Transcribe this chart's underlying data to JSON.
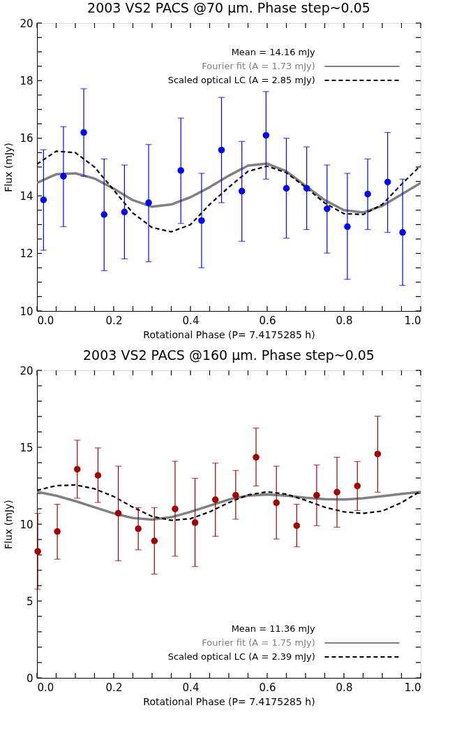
{
  "chart_data": [
    {
      "type": "scatter",
      "title": "2003 VS2 PACS @70 μm. Phase step~0.05",
      "xlabel": "Rotational Phase (P= 7.4175285 h)",
      "ylabel": "Flux (mJy)",
      "xlim": [
        0,
        1
      ],
      "ylim": [
        10,
        20
      ],
      "xticks": [
        {
          "value": 0,
          "label": "0.0"
        },
        {
          "value": 0.05,
          "label": null
        },
        {
          "value": 0.1,
          "label": null
        },
        {
          "value": 0.15,
          "label": null
        },
        {
          "value": 0.2,
          "label": "0.2"
        },
        {
          "value": 0.25,
          "label": null
        },
        {
          "value": 0.3,
          "label": null
        },
        {
          "value": 0.35,
          "label": null
        },
        {
          "value": 0.4,
          "label": "0.4"
        },
        {
          "value": 0.45,
          "label": null
        },
        {
          "value": 0.5,
          "label": null
        },
        {
          "value": 0.55,
          "label": null
        },
        {
          "value": 0.6,
          "label": "0.6"
        },
        {
          "value": 0.65,
          "label": null
        },
        {
          "value": 0.7,
          "label": null
        },
        {
          "value": 0.75,
          "label": null
        },
        {
          "value": 0.8,
          "label": "0.8"
        },
        {
          "value": 0.85,
          "label": null
        },
        {
          "value": 0.9,
          "label": null
        },
        {
          "value": 0.95,
          "label": null
        },
        {
          "value": 1,
          "label": "1.0"
        }
      ],
      "yticks": [
        10,
        {
          "value": 10.5,
          "label": null
        },
        {
          "value": 11,
          "label": null
        },
        {
          "value": 11.5,
          "label": null
        },
        12,
        {
          "value": 12.5,
          "label": null
        },
        {
          "value": 13,
          "label": null
        },
        {
          "value": 13.5,
          "label": null
        },
        14,
        {
          "value": 14.5,
          "label": null
        },
        {
          "value": 15,
          "label": null
        },
        {
          "value": 15.5,
          "label": null
        },
        16,
        {
          "value": 16.5,
          "label": null
        },
        {
          "value": 17,
          "label": null
        },
        {
          "value": 17.5,
          "label": null
        },
        18,
        {
          "value": 18.5,
          "label": null
        },
        {
          "value": 19,
          "label": null
        },
        {
          "value": 19.5,
          "label": null
        },
        20
      ],
      "grid": false,
      "legend": "top right",
      "annotations": [
        "Mean = 14.16 mJy"
      ],
      "series": [
        {
          "type": "scatter",
          "color": "#0000ff",
          "marker": "circle",
          "x": [
            0.017,
            0.069,
            0.122,
            0.175,
            0.228,
            0.291,
            0.375,
            0.429,
            0.481,
            0.534,
            0.597,
            0.65,
            0.703,
            0.756,
            0.809,
            0.862,
            0.914,
            0.953
          ],
          "values": [
            13.86,
            14.68,
            16.2,
            13.35,
            13.44,
            13.76,
            14.88,
            13.14,
            15.59,
            14.16,
            16.1,
            14.26,
            14.26,
            13.55,
            12.93,
            14.06,
            14.48,
            12.73
          ],
          "errors": [
            [
              12.11,
              15.6
            ],
            [
              12.93,
              16.4
            ],
            [
              14.68,
              17.72
            ],
            [
              11.4,
              15.28
            ],
            [
              11.81,
              15.07
            ],
            [
              11.71,
              15.78
            ],
            [
              13.04,
              16.7
            ],
            [
              11.5,
              14.78
            ],
            [
              13.76,
              17.42
            ],
            [
              12.42,
              15.89
            ],
            [
              14.58,
              17.62
            ],
            [
              12.53,
              16.0
            ],
            [
              12.83,
              15.7
            ],
            [
              12.01,
              15.07
            ],
            [
              11.1,
              14.78
            ],
            [
              12.83,
              15.28
            ],
            [
              12.73,
              16.2
            ],
            [
              10.89,
              14.58
            ]
          ]
        },
        {
          "type": "line",
          "name": "Fourier fit (A = 1.73 mJy)",
          "color": "#808080",
          "line_style": "solid",
          "x": [
            0,
            0.05,
            0.1,
            0.15,
            0.2,
            0.25,
            0.3,
            0.35,
            0.4,
            0.45,
            0.5,
            0.55,
            0.6,
            0.65,
            0.7,
            0.75,
            0.8,
            0.85,
            0.9,
            0.95,
            1
          ],
          "values": [
            14.45,
            14.75,
            14.78,
            14.6,
            14.25,
            13.85,
            13.62,
            13.7,
            13.95,
            14.3,
            14.7,
            15.05,
            15.12,
            14.85,
            14.35,
            13.85,
            13.5,
            13.42,
            13.65,
            14.05,
            14.45
          ]
        },
        {
          "type": "line",
          "name": "Scaled optical LC (A = 2.85 mJy)",
          "color": "#000000",
          "line_style": "dashed",
          "x": [
            0,
            0.05,
            0.1,
            0.15,
            0.2,
            0.25,
            0.3,
            0.35,
            0.4,
            0.45,
            0.5,
            0.55,
            0.6,
            0.65,
            0.7,
            0.75,
            0.8,
            0.85,
            0.9,
            0.95,
            1
          ],
          "values": [
            15.1,
            15.55,
            15.5,
            15.0,
            14.2,
            13.4,
            12.9,
            12.75,
            13.0,
            13.7,
            14.3,
            14.85,
            15.03,
            14.8,
            14.3,
            13.75,
            13.38,
            13.35,
            13.7,
            14.4,
            15.05
          ]
        }
      ]
    },
    {
      "type": "scatter",
      "title": "2003 VS2 PACS @160 μm. Phase step~0.05",
      "xlabel": "Rotational Phase (P= 7.4175285 h)",
      "ylabel": "Flux (mJy)",
      "xlim": [
        0,
        1
      ],
      "ylim": [
        0,
        20
      ],
      "xticks": [
        {
          "value": 0,
          "label": "0.0"
        },
        {
          "value": 0.05,
          "label": null
        },
        {
          "value": 0.1,
          "label": null
        },
        {
          "value": 0.15,
          "label": null
        },
        {
          "value": 0.2,
          "label": "0.2"
        },
        {
          "value": 0.25,
          "label": null
        },
        {
          "value": 0.3,
          "label": null
        },
        {
          "value": 0.35,
          "label": null
        },
        {
          "value": 0.4,
          "label": "0.4"
        },
        {
          "value": 0.45,
          "label": null
        },
        {
          "value": 0.5,
          "label": null
        },
        {
          "value": 0.55,
          "label": null
        },
        {
          "value": 0.6,
          "label": "0.6"
        },
        {
          "value": 0.65,
          "label": null
        },
        {
          "value": 0.7,
          "label": null
        },
        {
          "value": 0.75,
          "label": null
        },
        {
          "value": 0.8,
          "label": "0.8"
        },
        {
          "value": 0.85,
          "label": null
        },
        {
          "value": 0.9,
          "label": null
        },
        {
          "value": 0.95,
          "label": null
        },
        {
          "value": 1,
          "label": "1.0"
        }
      ],
      "yticks": [
        0,
        {
          "value": 1,
          "label": null
        },
        {
          "value": 2,
          "label": null
        },
        {
          "value": 3,
          "label": null
        },
        {
          "value": 4,
          "label": null
        },
        5,
        {
          "value": 6,
          "label": null
        },
        {
          "value": 7,
          "label": null
        },
        {
          "value": 8,
          "label": null
        },
        {
          "value": 9,
          "label": null
        },
        10,
        {
          "value": 11,
          "label": null
        },
        {
          "value": 12,
          "label": null
        },
        {
          "value": 13,
          "label": null
        },
        {
          "value": 14,
          "label": null
        },
        15,
        {
          "value": 16,
          "label": null
        },
        {
          "value": 17,
          "label": null
        },
        {
          "value": 18,
          "label": null
        },
        {
          "value": 19,
          "label": null
        },
        20
      ],
      "grid": false,
      "legend": "bottom right",
      "annotations": [
        "Mean = 11.36 mJy"
      ],
      "series": [
        {
          "type": "scatter",
          "color": "#a00000",
          "marker": "circle",
          "x": [
            0.002,
            0.053,
            0.105,
            0.159,
            0.212,
            0.264,
            0.306,
            0.36,
            0.412,
            0.465,
            0.518,
            0.571,
            0.624,
            0.677,
            0.729,
            0.782,
            0.835,
            0.888
          ],
          "values": [
            8.23,
            9.52,
            13.57,
            13.17,
            10.71,
            9.7,
            8.91,
            10.99,
            10.1,
            11.59,
            11.88,
            14.35,
            11.39,
            9.9,
            11.88,
            12.08,
            12.48,
            14.56
          ],
          "errors": [
            [
              5.77,
              10.7
            ],
            [
              7.72,
              11.29
            ],
            [
              11.69,
              15.46
            ],
            [
              11.41,
              14.96
            ],
            [
              7.62,
              13.77
            ],
            [
              8.33,
              11.07
            ],
            [
              6.75,
              11.07
            ],
            [
              7.92,
              14.09
            ],
            [
              7.24,
              12.98
            ],
            [
              9.21,
              13.97
            ],
            [
              10.32,
              13.49
            ],
            [
              12.48,
              16.25
            ],
            [
              9.03,
              13.77
            ],
            [
              8.53,
              11.29
            ],
            [
              9.9,
              13.85
            ],
            [
              9.8,
              14.35
            ],
            [
              10.89,
              14.07
            ],
            [
              12.08,
              17.02
            ]
          ]
        },
        {
          "type": "line",
          "name": "Fourier fit (A = 1.75 mJy)",
          "color": "#808080",
          "line_style": "solid",
          "x": [
            0,
            0.05,
            0.1,
            0.15,
            0.2,
            0.25,
            0.3,
            0.35,
            0.4,
            0.45,
            0.5,
            0.55,
            0.6,
            0.65,
            0.7,
            0.75,
            0.8,
            0.85,
            0.9,
            0.95,
            1
          ],
          "values": [
            12.1,
            11.85,
            11.5,
            11.1,
            10.7,
            10.4,
            10.3,
            10.45,
            10.8,
            11.2,
            11.6,
            11.85,
            11.93,
            11.85,
            11.72,
            11.62,
            11.6,
            11.68,
            11.82,
            11.97,
            12.1
          ]
        },
        {
          "type": "line",
          "name": "Scaled optical LC (A = 2.39 mJy)",
          "color": "#000000",
          "line_style": "dashed",
          "x": [
            0,
            0.05,
            0.1,
            0.15,
            0.2,
            0.25,
            0.3,
            0.35,
            0.4,
            0.45,
            0.5,
            0.55,
            0.6,
            0.65,
            0.7,
            0.75,
            0.8,
            0.85,
            0.9,
            0.95,
            1
          ],
          "values": [
            12.2,
            12.5,
            12.55,
            12.3,
            11.8,
            11.1,
            10.5,
            10.25,
            10.35,
            10.8,
            11.4,
            11.9,
            12.1,
            11.95,
            11.55,
            11.1,
            10.8,
            10.7,
            10.85,
            11.4,
            12.15
          ]
        }
      ]
    }
  ]
}
